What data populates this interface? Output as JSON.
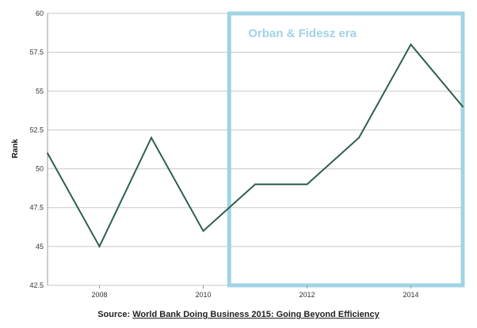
{
  "chart_data": {
    "type": "line",
    "ylabel": "Rank",
    "xlabel": "",
    "x": [
      2007,
      2008,
      2009,
      2010,
      2011,
      2012,
      2013,
      2014,
      2015
    ],
    "series": [
      {
        "values": [
          51,
          45,
          52,
          46,
          49,
          49,
          52,
          58,
          54
        ]
      }
    ],
    "xlim": [
      2007,
      2015
    ],
    "ylim": [
      42.5,
      60
    ],
    "x_ticks": [
      "2008",
      "2010",
      "2012",
      "2014"
    ],
    "y_ticks": [
      "60",
      "57.5",
      "55",
      "52.5",
      "50",
      "47.5",
      "45",
      "42.5"
    ],
    "grid": "horizontal",
    "annotation": {
      "text": "Orban & Fidesz era",
      "x_start": 2010.5,
      "x_end": 2015.0
    },
    "colors": {
      "line": "#2f5f4a",
      "annotation": "#9fd4e4",
      "grid": "#c8c8c8"
    }
  },
  "source": {
    "prefix": "Source: ",
    "link_text": "World Bank Doing Business 2015: Going Beyond Efficiency"
  }
}
